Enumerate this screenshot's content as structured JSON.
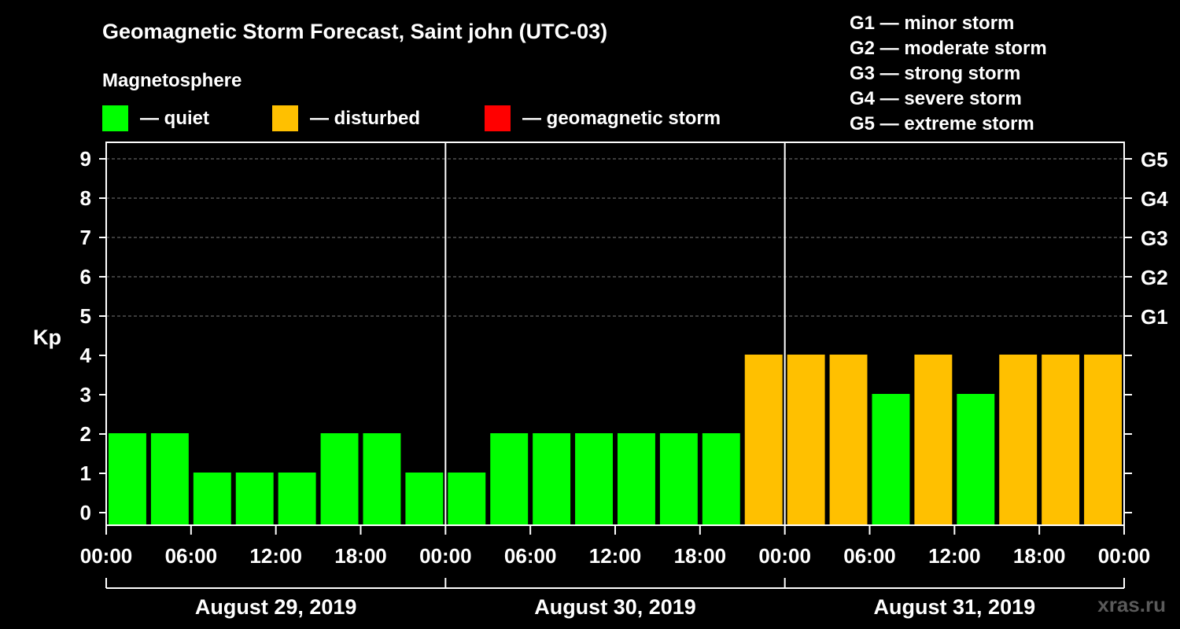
{
  "title": "Geomagnetic Storm Forecast, Saint john (UTC-03)",
  "legend": {
    "heading": "Magnetosphere",
    "items": [
      {
        "label": "— quiet",
        "color": "#00ff00"
      },
      {
        "label": "— disturbed",
        "color": "#ffc000"
      },
      {
        "label": "— geomagnetic storm",
        "color": "#ff0000"
      }
    ]
  },
  "storm_scale": [
    "G1 — minor storm",
    "G2 — moderate storm",
    "G3 — strong storm",
    "G4 — severe storm",
    "G5 — extreme storm"
  ],
  "watermark": "xras.ru",
  "chart_data": {
    "type": "bar",
    "ylabel": "Kp",
    "ylim": [
      0,
      9
    ],
    "yticks": [
      0,
      1,
      2,
      3,
      4,
      5,
      6,
      7,
      8,
      9
    ],
    "right_ticks": [
      {
        "kp": 5,
        "label": "G1"
      },
      {
        "kp": 6,
        "label": "G2"
      },
      {
        "kp": 7,
        "label": "G3"
      },
      {
        "kp": 8,
        "label": "G4"
      },
      {
        "kp": 9,
        "label": "G5"
      }
    ],
    "grid_from_kp": 5,
    "x_tick_labels": [
      "00:00",
      "06:00",
      "12:00",
      "18:00",
      "00:00",
      "06:00",
      "12:00",
      "18:00",
      "00:00",
      "06:00",
      "12:00",
      "18:00",
      "00:00"
    ],
    "days": [
      "August 29, 2019",
      "August 30, 2019",
      "August 31, 2019"
    ],
    "intervals_per_day": 8,
    "values": [
      2,
      2,
      1,
      1,
      1,
      2,
      2,
      1,
      1,
      2,
      2,
      2,
      2,
      2,
      2,
      4,
      4,
      4,
      3,
      4,
      3,
      4,
      4,
      4
    ],
    "categories": {
      "quiet": "#00ff00",
      "disturbed": "#ffc000",
      "storm": "#ff0000"
    }
  }
}
